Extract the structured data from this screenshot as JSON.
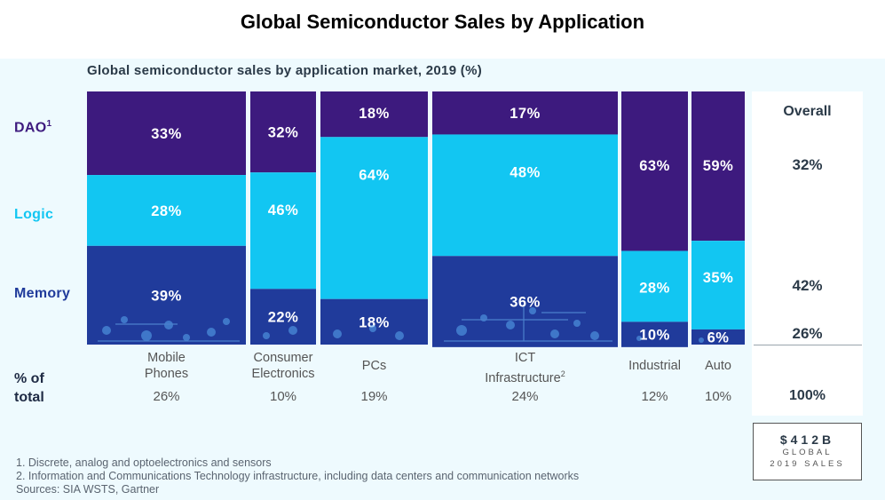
{
  "title": "Global Semiconductor Sales by Application",
  "colors": {
    "dao": "#3d1a7e",
    "logic": "#12c6f2",
    "memory": "#203b9b",
    "background": "#eefafe"
  },
  "chart_data": {
    "type": "bar",
    "subtype": "marimekko-stacked-100",
    "subtitle": "Global semiconductor sales by application market, 2019 (%)",
    "categories": [
      {
        "name": [
          "Mobile",
          "Phones"
        ],
        "share": "26%",
        "sup": ""
      },
      {
        "name": [
          "Consumer",
          "Electronics"
        ],
        "share": "10%",
        "sup": ""
      },
      {
        "name": [
          "PCs"
        ],
        "share": "19%",
        "sup": ""
      },
      {
        "name": [
          "ICT",
          "Infrastructure"
        ],
        "share": "24%",
        "sup": "2"
      },
      {
        "name": [
          "Industrial"
        ],
        "share": "12%",
        "sup": ""
      },
      {
        "name": [
          "Auto"
        ],
        "share": "10%",
        "sup": ""
      }
    ],
    "series": [
      {
        "name": "DAO",
        "sup": "1",
        "values": [
          33,
          32,
          18,
          17,
          63,
          59
        ]
      },
      {
        "name": "Logic",
        "sup": "",
        "values": [
          28,
          46,
          64,
          48,
          28,
          35
        ]
      },
      {
        "name": "Memory",
        "sup": "",
        "values": [
          39,
          22,
          18,
          36,
          10,
          6
        ]
      }
    ],
    "segment_labels": [
      [
        "33%",
        "32%",
        "18%",
        "17%",
        "63%",
        "59%"
      ],
      [
        "28%",
        "46%",
        "64%",
        "48%",
        "28%",
        "35%"
      ],
      [
        "39%",
        "22%",
        "18%",
        "36%",
        "10%",
        "6%"
      ]
    ],
    "total_row_label": [
      "% of",
      "total"
    ],
    "overall": {
      "title": "Overall",
      "dao": "32%",
      "logic": "42%",
      "memory": "26%",
      "total": "100%"
    },
    "global_sales": {
      "amount": "$412B",
      "caption_line1": "GLOBAL",
      "caption_line2": "2019 SALES"
    }
  },
  "notes": [
    "1. Discrete, analog and optoelectronics and sensors",
    "2. Information and Communications Technology infrastructure, including data centers and communication networks",
    "Sources: SIA WSTS, Gartner"
  ]
}
